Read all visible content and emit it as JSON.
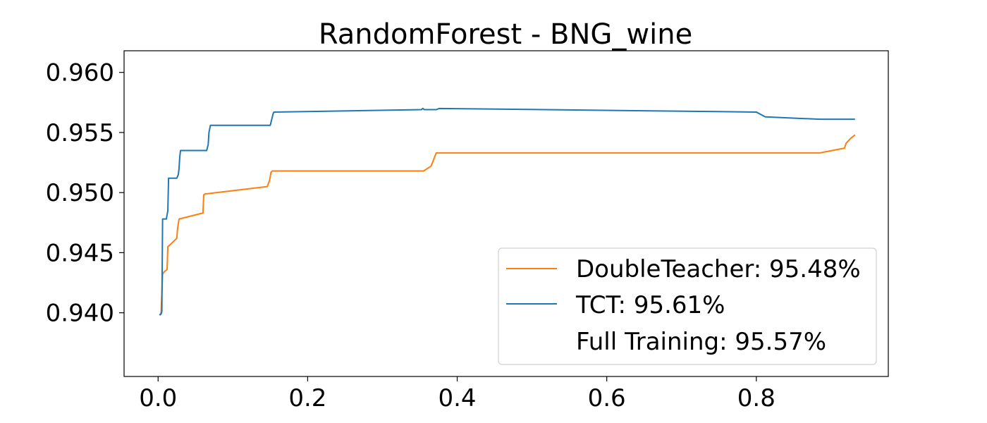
{
  "chart_data": {
    "type": "line",
    "title": "RandomForest - BNG_wine",
    "xlabel": "",
    "ylabel": "",
    "xlim": [
      -0.0455,
      0.9765
    ],
    "ylim": [
      0.9347,
      0.9618
    ],
    "xticks": [
      0.0,
      0.2,
      0.4,
      0.6,
      0.8
    ],
    "xtick_labels": [
      "0.0",
      "0.2",
      "0.4",
      "0.6",
      "0.8"
    ],
    "yticks": [
      0.94,
      0.945,
      0.95,
      0.955,
      0.96
    ],
    "ytick_labels": [
      "0.940",
      "0.945",
      "0.950",
      "0.955",
      "0.960"
    ],
    "grid": false,
    "legend_position": "lower-right",
    "series": [
      {
        "name": "DoubleTeacher: 95.48%",
        "color": "#ff7f0e",
        "x": [
          0.002,
          0.004,
          0.006,
          0.008,
          0.012,
          0.013,
          0.015,
          0.025,
          0.026,
          0.028,
          0.06,
          0.061,
          0.063,
          0.065,
          0.146,
          0.149,
          0.151,
          0.153,
          0.355,
          0.365,
          0.367,
          0.37,
          0.372,
          0.374,
          0.885,
          0.918,
          0.92,
          0.926,
          0.932
        ],
        "y": [
          0.9398,
          0.94,
          0.9432,
          0.9434,
          0.9436,
          0.9455,
          0.9456,
          0.9462,
          0.947,
          0.9478,
          0.9483,
          0.9498,
          0.9499,
          0.9499,
          0.9505,
          0.951,
          0.9517,
          0.9518,
          0.9518,
          0.9522,
          0.9525,
          0.953,
          0.9533,
          0.9533,
          0.9533,
          0.9537,
          0.9541,
          0.9545,
          0.9548
        ]
      },
      {
        "name": "TCT: 95.61%",
        "color": "#1f77b4",
        "x": [
          0.002,
          0.004,
          0.005,
          0.006,
          0.007,
          0.011,
          0.013,
          0.014,
          0.025,
          0.027,
          0.028,
          0.029,
          0.03,
          0.032,
          0.065,
          0.067,
          0.068,
          0.07,
          0.073,
          0.15,
          0.152,
          0.154,
          0.155,
          0.352,
          0.354,
          0.356,
          0.372,
          0.376,
          0.8,
          0.806,
          0.812,
          0.885,
          0.932
        ],
        "y": [
          0.9398,
          0.9399,
          0.9401,
          0.9478,
          0.9478,
          0.9478,
          0.9485,
          0.9512,
          0.9512,
          0.9515,
          0.952,
          0.953,
          0.9535,
          0.9535,
          0.9535,
          0.954,
          0.955,
          0.9556,
          0.9556,
          0.9556,
          0.9561,
          0.9566,
          0.9567,
          0.9569,
          0.957,
          0.9569,
          0.9569,
          0.957,
          0.9567,
          0.9565,
          0.9563,
          0.9561,
          0.9561
        ]
      },
      {
        "name": "Full Training: 95.57%",
        "color": "none",
        "x": [],
        "y": []
      }
    ]
  }
}
